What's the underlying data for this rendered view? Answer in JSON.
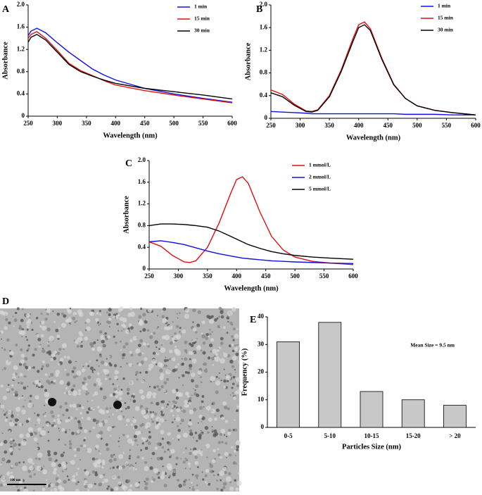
{
  "chart_data": [
    {
      "type": "line",
      "panel": "A",
      "x_label": "Wavelength (nm)",
      "y_label": "Absorbance",
      "legend": "top-right",
      "xlim": [
        250,
        600
      ],
      "xticks": [
        250,
        300,
        350,
        400,
        450,
        500,
        550,
        600
      ],
      "ylim": [
        0,
        2
      ],
      "yticks": [
        0,
        0.4,
        0.8,
        1.2,
        1.6,
        {
          "value": 2,
          "label": "2.0"
        }
      ],
      "x": [
        250,
        255,
        265,
        280,
        300,
        320,
        340,
        360,
        380,
        400,
        450,
        500,
        550,
        600
      ],
      "series": [
        {
          "name": "1 min",
          "color": "#1010e0",
          "values": [
            1.45,
            1.53,
            1.58,
            1.5,
            1.32,
            1.15,
            1.0,
            0.85,
            0.74,
            0.65,
            0.5,
            0.4,
            0.32,
            0.25
          ]
        },
        {
          "name": "15 min",
          "color": "#e01010",
          "values": [
            1.4,
            1.47,
            1.52,
            1.4,
            1.18,
            0.95,
            0.82,
            0.73,
            0.64,
            0.56,
            0.46,
            0.38,
            0.31,
            0.24
          ]
        },
        {
          "name": "30 min",
          "color": "#000000",
          "values": [
            1.33,
            1.42,
            1.47,
            1.37,
            1.15,
            0.93,
            0.8,
            0.72,
            0.65,
            0.59,
            0.5,
            0.44,
            0.38,
            0.31
          ]
        }
      ]
    },
    {
      "type": "line",
      "panel": "B",
      "x_label": "Wavelength (nm)",
      "y_label": "Absorbance",
      "legend": "top-right",
      "xlim": [
        250,
        600
      ],
      "xticks": [
        250,
        300,
        350,
        400,
        450,
        500,
        550,
        600
      ],
      "ylim": [
        0,
        2
      ],
      "yticks": [
        0,
        0.4,
        0.8,
        1.2,
        1.6,
        {
          "value": 2,
          "label": "2.0"
        }
      ],
      "x": [
        250,
        270,
        290,
        310,
        320,
        330,
        350,
        370,
        390,
        400,
        410,
        420,
        440,
        460,
        480,
        500,
        530,
        560,
        600
      ],
      "series": [
        {
          "name": "1 min",
          "color": "#1010e0",
          "values": [
            0.12,
            0.11,
            0.1,
            0.09,
            0.08,
            0.08,
            0.08,
            0.08,
            0.08,
            0.08,
            0.08,
            0.08,
            0.08,
            0.08,
            0.07,
            0.07,
            0.07,
            0.06,
            0.06
          ]
        },
        {
          "name": "15 min",
          "color": "#e01010",
          "values": [
            0.5,
            0.42,
            0.25,
            0.13,
            0.12,
            0.15,
            0.4,
            0.85,
            1.4,
            1.65,
            1.7,
            1.58,
            1.05,
            0.6,
            0.35,
            0.22,
            0.14,
            0.1,
            0.06
          ]
        },
        {
          "name": "30 min",
          "color": "#000000",
          "values": [
            0.45,
            0.38,
            0.23,
            0.12,
            0.11,
            0.14,
            0.38,
            0.82,
            1.35,
            1.6,
            1.65,
            1.55,
            1.03,
            0.59,
            0.35,
            0.22,
            0.14,
            0.1,
            0.06
          ]
        }
      ]
    },
    {
      "type": "line",
      "panel": "C",
      "x_label": "Wavelength (nm)",
      "y_label": "Absorbance",
      "legend": "top-right",
      "xlim": [
        250,
        600
      ],
      "xticks": [
        250,
        300,
        350,
        400,
        450,
        500,
        550,
        600
      ],
      "ylim": [
        0,
        2
      ],
      "yticks": [
        0,
        0.4,
        0.8,
        1.2,
        1.6,
        {
          "value": 2,
          "label": "2.0"
        }
      ],
      "x": [
        250,
        270,
        290,
        310,
        320,
        330,
        350,
        370,
        390,
        400,
        410,
        420,
        440,
        460,
        480,
        500,
        530,
        560,
        600
      ],
      "series": [
        {
          "name": "1 mmol/L",
          "color": "#e01010",
          "values": [
            0.5,
            0.42,
            0.25,
            0.13,
            0.12,
            0.15,
            0.4,
            0.85,
            1.4,
            1.65,
            1.7,
            1.58,
            1.05,
            0.6,
            0.35,
            0.22,
            0.14,
            0.11,
            0.08
          ]
        },
        {
          "name": "2 mmol/L",
          "color": "#1010e0",
          "values": [
            0.5,
            0.52,
            0.49,
            0.45,
            0.42,
            0.39,
            0.33,
            0.28,
            0.24,
            0.22,
            0.2,
            0.19,
            0.17,
            0.15,
            0.14,
            0.13,
            0.12,
            0.11,
            0.1
          ]
        },
        {
          "name": "5 mmol/L",
          "color": "#000000",
          "values": [
            0.8,
            0.83,
            0.83,
            0.82,
            0.81,
            0.8,
            0.77,
            0.7,
            0.6,
            0.55,
            0.5,
            0.45,
            0.38,
            0.32,
            0.28,
            0.25,
            0.22,
            0.2,
            0.18
          ]
        }
      ]
    },
    {
      "type": "bar",
      "panel": "E",
      "x_label": "Particles Size (nm)",
      "y_label": "Frequency (%)",
      "annotation": "Mean Size = 9.5 nm",
      "categories": [
        "0-5",
        "5-10",
        "10-15",
        "15-20",
        "> 20"
      ],
      "values": [
        31,
        38,
        13,
        10,
        8
      ],
      "color": "#c8c8c8",
      "ylim": [
        0,
        40
      ],
      "yticks": [
        0,
        10,
        20,
        30,
        40
      ]
    }
  ],
  "panel_d": {
    "label": "D",
    "scale_label": "100 nm"
  }
}
